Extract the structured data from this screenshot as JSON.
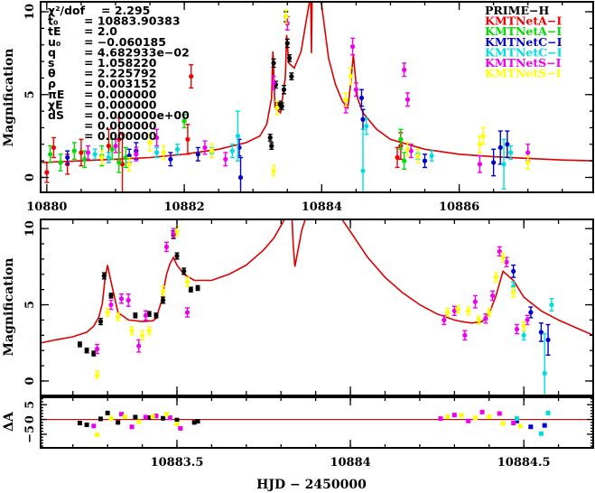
{
  "chart_data": [
    {
      "type": "scatter",
      "panel": "overview",
      "xlabel": "",
      "ylabel": "Magnification",
      "xlim": [
        10879.91,
        10887.95
      ],
      "ylim": [
        -0.9,
        10.6
      ],
      "xticks": [
        10880,
        10882,
        10884,
        10886
      ],
      "xtick_labels": [
        "10880",
        "10882",
        "10884",
        "10886"
      ],
      "yticks": [
        0,
        5,
        10
      ],
      "ytick_labels": [
        "0",
        "5",
        "10"
      ],
      "legend_position": "top-right",
      "parameters": [
        {
          "label": "χ²/dof",
          "value": "= 2.295"
        },
        {
          "label": "t₀",
          "value": "= 10883.90383"
        },
        {
          "label": "tE",
          "value": "= 2.0"
        },
        {
          "label": "u₀",
          "value": "= −0.060185"
        },
        {
          "label": "q",
          "value": "= 4.682933e−02"
        },
        {
          "label": "s",
          "value": "= 1.058220"
        },
        {
          "label": "θ",
          "value": "= 2.225792"
        },
        {
          "label": "ρ",
          "value": "= 0.003152"
        },
        {
          "label": "πE",
          "value": "= 0.000000"
        },
        {
          "label": "χE",
          "value": "= 0.000000"
        },
        {
          "label": "dS",
          "value": "= 0.000000e+00"
        },
        {
          "label": "",
          "value": "= 0.000000"
        },
        {
          "label": "",
          "value": "= 0.000000"
        }
      ],
      "model": {
        "name": "model",
        "color": "#dd0000",
        "x": [
          10879.91,
          10880.5,
          10881.0,
          10881.5,
          10882.0,
          10882.5,
          10882.9,
          10883.1,
          10883.2,
          10883.27,
          10883.29,
          10883.32,
          10883.4,
          10883.47,
          10883.49,
          10883.52,
          10883.6,
          10883.7,
          10883.78,
          10883.84,
          10883.85,
          10883.86,
          10883.9,
          10883.95,
          10884.0,
          10884.1,
          10884.2,
          10884.3,
          10884.38,
          10884.42,
          10884.46,
          10884.52,
          10884.6,
          10884.8,
          10885.0,
          10885.5,
          10886.0,
          10886.5,
          10887.0,
          10887.5,
          10887.95
        ],
        "y": [
          0.9,
          1.0,
          1.1,
          1.2,
          1.4,
          1.7,
          2.1,
          2.5,
          3.2,
          4.8,
          7.6,
          4.2,
          3.9,
          6.0,
          8.6,
          6.9,
          6.6,
          7.6,
          9.6,
          11.0,
          7.5,
          10.6,
          13.0,
          11.5,
          10.4,
          7.2,
          5.6,
          4.6,
          4.2,
          5.6,
          7.4,
          4.8,
          3.9,
          2.9,
          2.3,
          1.7,
          1.4,
          1.25,
          1.15,
          1.05,
          1.0
        ]
      },
      "series": [
        {
          "name": "PRIME−H",
          "color": "#000000",
          "x": [
            10883.25,
            10883.27,
            10883.3,
            10883.33,
            10883.36,
            10883.39,
            10883.42,
            10883.45,
            10883.48,
            10883.5,
            10883.53,
            10883.56
          ],
          "y": [
            2.4,
            1.9,
            6.9,
            5.6,
            4.3,
            4.4,
            4.3,
            5.3,
            9.7,
            8.1,
            7.2,
            6.1
          ],
          "err": [
            0.2,
            0.2,
            0.25,
            0.2,
            0.2,
            0.2,
            0.2,
            0.25,
            0.3,
            0.25,
            0.2,
            0.2
          ]
        },
        {
          "name": "KMTNetA−I",
          "color": "#ee0000",
          "x": [
            10880.0,
            10880.1,
            10880.3,
            10880.5,
            10880.9,
            10881.05,
            10881.1,
            10882.05,
            10882.1,
            10885.1,
            10885.15
          ],
          "y": [
            0.3,
            1.8,
            0.8,
            1.5,
            1.9,
            2.3,
            0.8,
            2.3,
            6.1,
            1.2,
            1.9
          ],
          "err": [
            0.6,
            0.6,
            0.6,
            0.8,
            1.0,
            1.3,
            1.8,
            0.9,
            0.7,
            0.6,
            0.8
          ]
        },
        {
          "name": "KMTNetA−I",
          "color": "#00dd00",
          "x": [
            10880.05,
            10880.2,
            10880.4,
            10880.55,
            10880.8,
            10880.95,
            10881.05,
            10881.15,
            10882.0,
            10885.15,
            10885.2
          ],
          "y": [
            1.4,
            0.9,
            1.6,
            1.1,
            1.3,
            1.7,
            0.9,
            1.2,
            3.4,
            2.3,
            1.0
          ],
          "err": [
            0.5,
            0.5,
            0.5,
            0.5,
            0.6,
            0.6,
            0.6,
            0.6,
            0.4,
            0.6,
            0.5
          ]
        },
        {
          "name": "KMTNetC−I",
          "color": "#0000cc",
          "x": [
            10880.3,
            10881.2,
            10881.3,
            10881.8,
            10882.2,
            10882.8,
            10882.82,
            10884.58,
            10884.6,
            10885.5,
            10886.5,
            10886.6,
            10886.7
          ],
          "y": [
            1.2,
            1.3,
            1.6,
            1.1,
            1.4,
            1.8,
            0.0,
            4.8,
            3.5,
            1.0,
            0.9,
            1.8,
            2.0
          ],
          "err": [
            0.4,
            0.4,
            0.5,
            0.4,
            0.4,
            0.5,
            1.2,
            0.5,
            0.6,
            0.4,
            0.8,
            1.0,
            0.8
          ]
        },
        {
          "name": "KMTNetC−I",
          "color": "#00dddd",
          "x": [
            10880.7,
            10880.9,
            10881.6,
            10881.9,
            10882.4,
            10882.7,
            10882.78,
            10884.6,
            10884.65,
            10885.4,
            10885.6,
            10886.65,
            10886.75
          ],
          "y": [
            1.4,
            1.2,
            1.5,
            1.7,
            1.5,
            1.6,
            2.5,
            0.4,
            3.1,
            1.4,
            1.3,
            0.8,
            1.5
          ],
          "err": [
            0.3,
            0.3,
            0.3,
            0.3,
            0.3,
            0.4,
            1.5,
            2.5,
            0.5,
            0.3,
            0.3,
            1.5,
            0.4
          ]
        },
        {
          "name": "KMTNetS−I",
          "color": "#ee00ee",
          "x": [
            10880.6,
            10881.0,
            10881.3,
            10881.6,
            10882.3,
            10882.6,
            10883.3,
            10883.5,
            10884.35,
            10884.45,
            10884.5,
            10885.2,
            10885.25,
            10885.3,
            10886.3,
            10887.0
          ],
          "y": [
            1.5,
            1.9,
            1.4,
            2.4,
            1.8,
            1.1,
            5.7,
            9.3,
            4.3,
            7.9,
            5.3,
            6.5,
            4.7,
            1.6,
            0.8,
            1.5
          ],
          "err": [
            0.4,
            0.4,
            0.4,
            0.5,
            0.4,
            0.4,
            0.4,
            0.4,
            0.4,
            0.5,
            0.4,
            0.4,
            0.4,
            0.4,
            0.5,
            0.5
          ]
        },
        {
          "name": "KMTNetS−I",
          "color": "#ffff00",
          "x": [
            10880.8,
            10881.2,
            10881.5,
            10881.7,
            10882.4,
            10883.3,
            10883.35,
            10883.48,
            10884.35,
            10884.42,
            10885.25,
            10885.4,
            10886.3,
            10886.35,
            10887.0
          ],
          "y": [
            1.2,
            0.8,
            2.1,
            1.5,
            1.6,
            0.4,
            4.2,
            9.7,
            4.7,
            6.1,
            1.7,
            1.3,
            2.0,
            2.5,
            0.9
          ],
          "err": [
            0.4,
            0.4,
            0.5,
            0.4,
            0.4,
            0.3,
            0.4,
            0.4,
            0.4,
            0.5,
            0.4,
            0.4,
            0.5,
            0.5,
            0.4
          ]
        }
      ],
      "legend": [
        {
          "label": "PRIME−H",
          "color": "#000000"
        },
        {
          "label": "KMTNetA−I",
          "color": "#ee0000"
        },
        {
          "label": "KMTNetA−I",
          "color": "#00dd00"
        },
        {
          "label": "KMTNetC−I",
          "color": "#0000cc"
        },
        {
          "label": "KMTNetC−I",
          "color": "#00dddd"
        },
        {
          "label": "KMTNetS−I",
          "color": "#ee00ee"
        },
        {
          "label": "KMTNetS−I",
          "color": "#ffff00"
        }
      ]
    },
    {
      "type": "scatter",
      "panel": "zoom",
      "xlabel": "HJD − 2450000",
      "ylabel": "Magnification",
      "xlim": [
        10883.107,
        10884.7
      ],
      "ylim": [
        -0.95,
        10.6
      ],
      "xticks": [
        10883.5,
        10884,
        10884.5
      ],
      "xtick_labels": [
        "10883.5",
        "10884",
        "10884.5"
      ],
      "yticks": [
        0,
        5,
        10
      ],
      "ytick_labels": [
        "0",
        "5",
        "10"
      ],
      "model": {
        "name": "model",
        "color": "#dd0000",
        "x": [
          10883.107,
          10883.15,
          10883.2,
          10883.24,
          10883.26,
          10883.275,
          10883.285,
          10883.292,
          10883.3,
          10883.31,
          10883.33,
          10883.36,
          10883.4,
          10883.43,
          10883.44,
          10883.455,
          10883.47,
          10883.48,
          10883.49,
          10883.5,
          10883.52,
          10883.55,
          10883.6,
          10883.65,
          10883.7,
          10883.75,
          10883.78,
          10883.8,
          10883.82,
          10883.83,
          10883.835,
          10883.84,
          10883.86,
          10883.87,
          10883.95,
          10883.97,
          10884.0,
          10884.05,
          10884.1,
          10884.15,
          10884.2,
          10884.25,
          10884.3,
          10884.32,
          10884.35,
          10884.38,
          10884.4,
          10884.42,
          10884.44,
          10884.47,
          10884.5,
          10884.55,
          10884.6,
          10884.65,
          10884.7
        ],
        "y": [
          2.5,
          2.7,
          2.9,
          3.2,
          3.6,
          4.2,
          5.1,
          6.6,
          7.6,
          6.5,
          4.5,
          4.0,
          3.9,
          3.95,
          4.1,
          5.2,
          7.0,
          7.7,
          8.1,
          7.6,
          7.0,
          6.6,
          6.6,
          7.0,
          7.6,
          8.6,
          9.4,
          10.2,
          11.0,
          11.5,
          9.0,
          7.5,
          9.9,
          10.6,
          11.2,
          10.8,
          9.8,
          8.1,
          6.8,
          5.8,
          5.0,
          4.4,
          4.0,
          3.9,
          3.8,
          3.9,
          4.4,
          5.6,
          7.2,
          6.6,
          5.5,
          4.6,
          4.0,
          3.5,
          3.0
        ]
      },
      "series": [
        {
          "name": "PRIME−H",
          "color": "#000000",
          "x": [
            10883.22,
            10883.24,
            10883.26,
            10883.28,
            10883.29,
            10883.31,
            10883.38,
            10883.42,
            10883.44,
            10883.46,
            10883.49,
            10883.5,
            10883.52,
            10883.54,
            10883.56
          ],
          "y": [
            2.4,
            2.0,
            1.8,
            3.9,
            6.9,
            5.6,
            4.3,
            4.4,
            4.3,
            5.3,
            9.6,
            8.2,
            7.2,
            6.0,
            6.1
          ],
          "err": [
            0.15,
            0.15,
            0.15,
            0.2,
            0.2,
            0.15,
            0.15,
            0.15,
            0.15,
            0.2,
            0.25,
            0.2,
            0.2,
            0.15,
            0.15
          ]
        },
        {
          "name": "KMTNetC−I",
          "color": "#0000cc",
          "x": [
            10884.47,
            10884.52,
            10884.55,
            10884.57
          ],
          "y": [
            7.2,
            4.5,
            3.2,
            2.7
          ],
          "err": [
            0.4,
            0.35,
            0.6,
            1.0
          ]
        },
        {
          "name": "KMTNetC−I",
          "color": "#00dddd",
          "x": [
            10884.47,
            10884.5,
            10884.56,
            10884.58
          ],
          "y": [
            6.2,
            3.0,
            0.5,
            5.0
          ],
          "err": [
            0.3,
            0.3,
            2.6,
            0.4
          ]
        },
        {
          "name": "KMTNetS−I",
          "color": "#ee00ee",
          "x": [
            10883.27,
            10883.31,
            10883.34,
            10883.36,
            10883.39,
            10883.41,
            10883.47,
            10883.49,
            10883.53,
            10884.27,
            10884.3,
            10884.33,
            10884.36,
            10884.39,
            10884.41,
            10884.43,
            10884.45,
            10884.48,
            10884.51
          ],
          "y": [
            2.1,
            5.0,
            5.4,
            5.3,
            2.3,
            4.3,
            8.8,
            9.7,
            4.5,
            4.0,
            4.6,
            3.0,
            5.2,
            4.1,
            5.6,
            8.5,
            7.8,
            3.4,
            4.0
          ],
          "err": [
            0.3,
            0.3,
            0.3,
            0.4,
            0.4,
            0.3,
            0.3,
            0.3,
            0.3,
            0.3,
            0.3,
            0.3,
            0.4,
            0.3,
            0.3,
            0.3,
            0.3,
            0.3,
            0.3
          ]
        },
        {
          "name": "KMTNetS−I",
          "color": "#ffff00",
          "x": [
            10883.27,
            10883.3,
            10883.33,
            10883.37,
            10883.4,
            10883.42,
            10883.46,
            10883.5,
            10883.53,
            10884.28,
            10884.31,
            10884.34,
            10884.37,
            10884.4,
            10884.42,
            10884.44,
            10884.47,
            10884.5
          ],
          "y": [
            0.4,
            4.5,
            4.2,
            3.3,
            3.0,
            3.3,
            5.9,
            9.8,
            6.5,
            4.5,
            4.7,
            4.6,
            4.0,
            4.5,
            6.8,
            8.1,
            5.8,
            3.6
          ],
          "err": [
            0.25,
            0.25,
            0.25,
            0.25,
            0.3,
            0.25,
            0.3,
            0.3,
            0.3,
            0.25,
            0.25,
            0.25,
            0.25,
            0.25,
            0.3,
            0.3,
            0.3,
            0.3
          ]
        }
      ]
    },
    {
      "type": "scatter",
      "panel": "residuals",
      "xlabel": "HJD − 2450000",
      "ylabel": "ΔA",
      "xlim": [
        10883.107,
        10884.7
      ],
      "ylim": [
        -9.6,
        7.5
      ],
      "yticks": [
        -5,
        0,
        5
      ],
      "ytick_labels": [
        "−5",
        "0",
        "5"
      ],
      "zero_line_color": "#dd0000",
      "series": [
        {
          "name": "PRIME−H",
          "color": "#000000",
          "x": [
            10883.22,
            10883.24,
            10883.28,
            10883.3,
            10883.33,
            10883.38,
            10883.42,
            10883.46,
            10883.5,
            10883.55,
            10883.56
          ],
          "y": [
            -1.2,
            -1.8,
            0.2,
            2.2,
            -1.0,
            0.8,
            0.6,
            0.4,
            -0.2,
            -1.0,
            -0.6
          ]
        },
        {
          "name": "KMTNetC−I",
          "color": "#0000cc",
          "x": [
            10884.48,
            10884.52,
            10884.56
          ],
          "y": [
            -0.5,
            -2.5,
            -2.0
          ]
        },
        {
          "name": "KMTNetC−I",
          "color": "#00dddd",
          "x": [
            10884.48,
            10884.55,
            10884.57
          ],
          "y": [
            0.3,
            -4.8,
            2.2
          ]
        },
        {
          "name": "KMTNetS−I",
          "color": "#ee00ee",
          "x": [
            10883.26,
            10883.34,
            10883.37,
            10883.41,
            10883.44,
            10883.48,
            10883.51,
            10884.26,
            10884.3,
            10884.34,
            10884.38,
            10884.43,
            10884.47
          ],
          "y": [
            -2.2,
            1.8,
            -2.5,
            0.8,
            1.2,
            0.6,
            -3.0,
            0.3,
            1.5,
            -0.5,
            2.5,
            2.0,
            -1.2
          ]
        },
        {
          "name": "KMTNetS−I",
          "color": "#ffff00",
          "x": [
            10883.27,
            10883.31,
            10883.35,
            10883.39,
            10883.43,
            10883.47,
            10883.5,
            10884.28,
            10884.32,
            10884.36,
            10884.4,
            10884.44,
            10884.49
          ],
          "y": [
            -5.2,
            0.4,
            0.9,
            -0.8,
            1.0,
            1.8,
            -1.5,
            0.9,
            1.4,
            0.6,
            0.9,
            -1.4,
            -2.2
          ]
        }
      ]
    }
  ]
}
